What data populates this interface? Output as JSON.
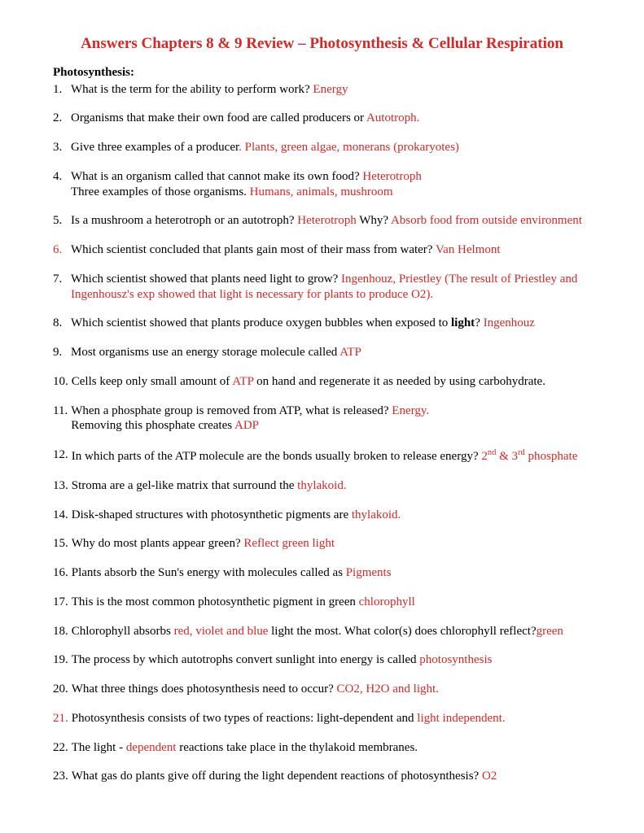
{
  "title": "Answers Chapters 8 & 9 Review – Photosynthesis & Cellular Respiration",
  "sectionHeading": "Photosynthesis:",
  "colors": {
    "answer": "#d22927",
    "text": "#000000",
    "background": "#ffffff"
  },
  "items": [
    {
      "num": "1.",
      "parts": [
        {
          "t": "What is the term for the ability to perform work? ",
          "c": "q"
        },
        {
          "t": "Energy",
          "c": "a"
        }
      ]
    },
    {
      "num": "2.",
      "parts": [
        {
          "t": "Organisms that make their own food are called producers or ",
          "c": "q"
        },
        {
          "t": "Autotroph.",
          "c": "a"
        }
      ]
    },
    {
      "num": "3.",
      "parts": [
        {
          "t": "Give three examples of a producer",
          "c": "q"
        },
        {
          "t": ".  Plants, green algae, monerans (prokaryotes)",
          "c": "a"
        }
      ]
    },
    {
      "num": "4.",
      "parts": [
        {
          "t": "What is an organism called that cannot make its own food?  ",
          "c": "q"
        },
        {
          "t": "Heterotroph",
          "c": "a"
        },
        {
          "t": "\n",
          "c": "br"
        },
        {
          "t": "Three examples of those organisms. ",
          "c": "q"
        },
        {
          "t": "Humans, animals, mushroom",
          "c": "a"
        }
      ]
    },
    {
      "num": "5.",
      "parts": [
        {
          "t": "Is a mushroom a heterotroph or an autotroph?  ",
          "c": "q"
        },
        {
          "t": "Heterotroph",
          "c": "a"
        },
        {
          "t": " Why?  ",
          "c": "q"
        },
        {
          "t": "Absorb food from outside environment",
          "c": "a"
        }
      ]
    },
    {
      "num": "6.",
      "rednum": true,
      "parts": [
        {
          "t": "Which scientist concluded that plants gain most of their mass from water?  ",
          "c": "q"
        },
        {
          "t": "Van Helmont",
          "c": "a"
        }
      ]
    },
    {
      "num": "7.",
      "parts": [
        {
          "t": "Which scientist showed that plants need light to grow?  ",
          "c": "q"
        },
        {
          "t": "Ingenhouz, Priestley (The result of Priestley and Ingenhousz's exp showed that light is necessary for plants to produce O2).",
          "c": "a"
        }
      ]
    },
    {
      "num": "8.",
      "parts": [
        {
          "t": "Which scientist showed that plants produce oxygen bubbles when exposed to ",
          "c": "q"
        },
        {
          "t": "light",
          "c": "b"
        },
        {
          "t": "?  ",
          "c": "q"
        },
        {
          "t": "Ingenhouz",
          "c": "a"
        }
      ]
    },
    {
      "num": "9.",
      "parts": [
        {
          "t": "Most organisms use an energy storage molecule called ",
          "c": "q"
        },
        {
          "t": "ATP",
          "c": "a"
        }
      ]
    },
    {
      "num": "10.",
      "parts": [
        {
          "t": "Cells keep only small  amount of ",
          "c": "q"
        },
        {
          "t": "ATP",
          "c": "a"
        },
        {
          "t": " on hand and regenerate it as needed by using carbohydrate.",
          "c": "q"
        }
      ]
    },
    {
      "num": "11.",
      "parts": [
        {
          "t": "When a phosphate group is removed from ATP, what is released? ",
          "c": "q"
        },
        {
          "t": "Energy.",
          "c": "a"
        },
        {
          "t": "\n",
          "c": "br"
        },
        {
          "t": " Removing this phosphate creates ",
          "c": "q"
        },
        {
          "t": "ADP",
          "c": "a"
        }
      ]
    },
    {
      "num": "12.",
      "parts": [
        {
          "t": "In which parts of the ATP  molecule are the bonds usually broken to release energy? ",
          "c": "q"
        },
        {
          "t": "2",
          "c": "a"
        },
        {
          "t": "nd",
          "c": "asup"
        },
        {
          "t": " & 3",
          "c": "a"
        },
        {
          "t": "rd",
          "c": "asup"
        },
        {
          "t": " phosphate",
          "c": "a"
        }
      ]
    },
    {
      "num": "13.",
      "parts": [
        {
          "t": "Stroma  are a gel-like matrix that surround the ",
          "c": "q"
        },
        {
          "t": "thylakoid.",
          "c": "a"
        }
      ]
    },
    {
      "num": "14.",
      "parts": [
        {
          "t": "Disk-shaped structures with photosynthetic pigments are ",
          "c": "q"
        },
        {
          "t": "thylakoid.",
          "c": "a"
        }
      ]
    },
    {
      "num": "15.",
      "parts": [
        {
          "t": "Why do most plants appear green?  ",
          "c": "q"
        },
        {
          "t": "Reflect green light",
          "c": "a"
        }
      ]
    },
    {
      "num": "16.",
      "parts": [
        {
          "t": "Plants absorb the Sun's energy with molecules called as ",
          "c": "q"
        },
        {
          "t": "Pigments",
          "c": "a"
        }
      ]
    },
    {
      "num": "17.",
      "parts": [
        {
          "t": "This is the most common photosynthetic pigment in green  ",
          "c": "q"
        },
        {
          "t": "chlorophyll",
          "c": "a"
        }
      ]
    },
    {
      "num": "18.",
      "parts": [
        {
          "t": "Chlorophyll absorbs ",
          "c": "q"
        },
        {
          "t": "red, violet and blue",
          "c": "a"
        },
        {
          "t": " light the most. What color(s) does chlorophyll reflect?",
          "c": "q"
        },
        {
          "t": "green",
          "c": "a"
        }
      ]
    },
    {
      "num": "19.",
      "parts": [
        {
          "t": "The process by which autotrophs convert sunlight into energy is called ",
          "c": "q"
        },
        {
          "t": "photosynthesis",
          "c": "a"
        }
      ]
    },
    {
      "num": "20.",
      "parts": [
        {
          "t": "What three things does photosynthesis need to occur?  ",
          "c": "q"
        },
        {
          "t": "CO2, H2O and light.",
          "c": "a"
        }
      ]
    },
    {
      "num": "21.",
      "rednum": true,
      "parts": [
        {
          "t": "Photosynthesis consists of two types of reactions:  light-dependent and ",
          "c": "q"
        },
        {
          "t": "light independent.",
          "c": "a"
        }
      ]
    },
    {
      "num": "22.",
      "parts": [
        {
          "t": "The light - ",
          "c": "q"
        },
        {
          "t": "dependent",
          "c": "a"
        },
        {
          "t": " reactions take place in the thylakoid membranes.",
          "c": "q"
        }
      ]
    },
    {
      "num": "23.",
      "parts": [
        {
          "t": "What gas do plants give off during the light dependent reactions of photosynthesis? ",
          "c": "q"
        },
        {
          "t": "O2",
          "c": "a"
        }
      ]
    }
  ]
}
